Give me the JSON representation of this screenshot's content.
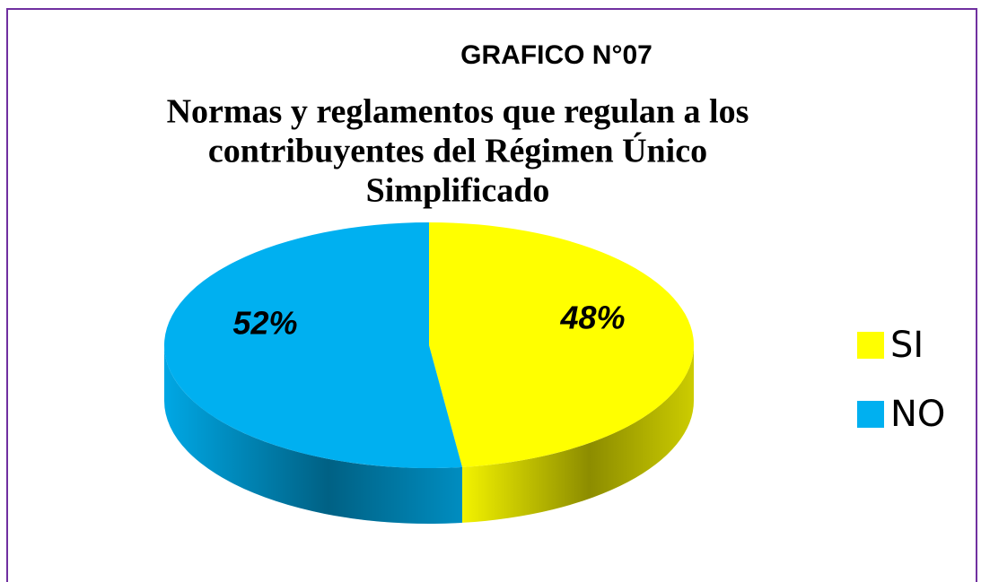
{
  "chart_data": {
    "type": "pie3d",
    "heading": "GRAFICO N°07",
    "title": [
      "Normas y reglamentos que regulan a los",
      "contribuyentes del Régimen Único",
      "Simplificado"
    ],
    "categories": [
      "SI",
      "NO"
    ],
    "values": [
      48,
      52
    ],
    "value_labels": [
      "48%",
      "52%"
    ],
    "colors": [
      "#ffff00",
      "#00b0f0"
    ],
    "legend": "right"
  }
}
